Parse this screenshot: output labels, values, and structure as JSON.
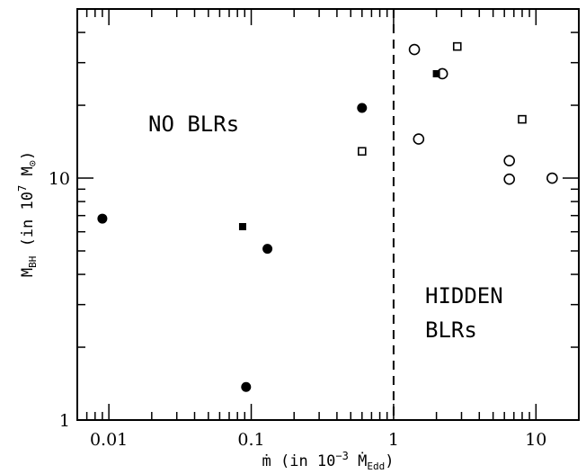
{
  "chart_data": {
    "type": "scatter",
    "xscale": "log",
    "yscale": "log",
    "xlim": [
      0.006,
      20
    ],
    "ylim": [
      1,
      50
    ],
    "xticks_labeled": [
      "0.01",
      "0.1",
      "1",
      "10"
    ],
    "yticks_labeled": [
      "1",
      "10"
    ],
    "xlabel": "ṁ  (in  10⁻³ Ṁ_Edd)",
    "ylabel": "M_BH  (in  10⁷ M⊙)",
    "divider_x": 1,
    "divider_style": "dashed",
    "regions": [
      {
        "label": "NO  BLRs",
        "lines": [
          "NO  BLRs"
        ]
      },
      {
        "label": "HIDDEN BLRs",
        "lines": [
          "HIDDEN",
          "BLRs"
        ]
      }
    ],
    "series": [
      {
        "marker": "filled-circle",
        "points": [
          {
            "x": 0.009,
            "y": 6.8
          },
          {
            "x": 0.13,
            "y": 5.1
          },
          {
            "x": 0.092,
            "y": 1.37
          },
          {
            "x": 0.6,
            "y": 19.5
          }
        ]
      },
      {
        "marker": "filled-square",
        "points": [
          {
            "x": 0.087,
            "y": 6.3
          },
          {
            "x": 2.0,
            "y": 27
          }
        ]
      },
      {
        "marker": "open-circle",
        "points": [
          {
            "x": 1.4,
            "y": 34
          },
          {
            "x": 2.2,
            "y": 27
          },
          {
            "x": 1.5,
            "y": 14.5
          },
          {
            "x": 6.5,
            "y": 11.8
          },
          {
            "x": 6.5,
            "y": 9.9
          },
          {
            "x": 13,
            "y": 10
          }
        ]
      },
      {
        "marker": "open-square",
        "points": [
          {
            "x": 2.8,
            "y": 35
          },
          {
            "x": 0.6,
            "y": 12.9
          },
          {
            "x": 8,
            "y": 17.5
          }
        ]
      }
    ]
  }
}
